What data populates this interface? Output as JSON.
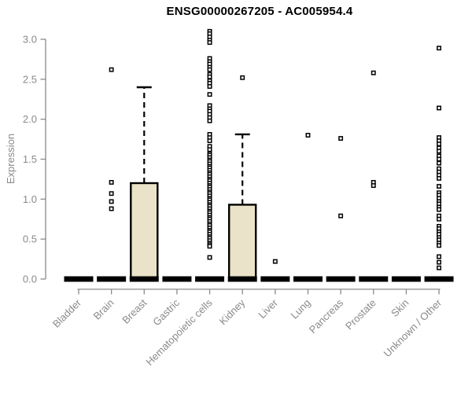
{
  "title": "ENSG00000267205 - AC005954.4",
  "colors": {
    "box_fill": "#EAE3C9",
    "box_border": "#000000",
    "bar_flat": "#000000",
    "axis": "#8a8a8a",
    "tick_label": "#8a8a8a",
    "title_color": "#000000",
    "background": "#ffffff",
    "outlier_fill": "#ffffff",
    "outlier_border": "#000000"
  },
  "chart_data": {
    "type": "boxplot",
    "title": "ENSG00000267205 - AC005954.4",
    "xlabel": "",
    "ylabel": "Expression",
    "ylim": [
      0,
      3.0
    ],
    "yticks": [
      0.0,
      0.5,
      1.0,
      1.5,
      2.0,
      2.5,
      3.0
    ],
    "ytick_labels": [
      "0.0",
      "0.5",
      "1.0",
      "1.5",
      "2.0",
      "2.5",
      "3.0"
    ],
    "grid": false,
    "legend": "none",
    "categories": [
      "Bladder",
      "Brain",
      "Breast",
      "Gastric",
      "Hematopoietic cells",
      "Kidney",
      "Liver",
      "Lung",
      "Pancreas",
      "Prostate",
      "Skin",
      "Unknown / Other"
    ],
    "series": [
      {
        "name": "Bladder",
        "min": 0,
        "q1": 0,
        "median": 0,
        "q3": 0,
        "whisker_low": 0,
        "whisker_high": 0,
        "outliers": []
      },
      {
        "name": "Brain",
        "min": 0,
        "q1": 0,
        "median": 0,
        "q3": 0,
        "whisker_low": 0,
        "whisker_high": 0,
        "outliers": [
          2.62,
          1.21,
          1.07,
          0.97,
          0.88
        ]
      },
      {
        "name": "Breast",
        "min": 0,
        "q1": 0,
        "median": 0,
        "q3": 1.2,
        "whisker_low": 0,
        "whisker_high": 2.4,
        "outliers": []
      },
      {
        "name": "Gastric",
        "min": 0,
        "q1": 0,
        "median": 0,
        "q3": 0,
        "whisker_low": 0,
        "whisker_high": 0,
        "outliers": []
      },
      {
        "name": "Hematopoietic cells",
        "min": 0,
        "q1": 0,
        "median": 0,
        "q3": 0,
        "whisker_low": 0,
        "whisker_high": 0,
        "outliers": [
          3.1,
          3.07,
          3.03,
          2.99,
          2.96,
          2.76,
          2.72,
          2.69,
          2.65,
          2.62,
          2.56,
          2.53,
          2.48,
          2.45,
          2.41,
          2.31,
          2.17,
          2.13,
          2.1,
          2.06,
          2.02,
          1.98,
          1.81,
          1.77,
          1.73,
          1.66,
          1.62,
          1.57,
          1.55,
          1.52,
          1.49,
          1.47,
          1.44,
          1.41,
          1.39,
          1.36,
          1.33,
          1.31,
          1.28,
          1.25,
          1.23,
          1.2,
          1.17,
          1.15,
          1.12,
          1.09,
          1.07,
          1.04,
          1.01,
          0.99,
          0.96,
          0.93,
          0.91,
          0.88,
          0.85,
          0.83,
          0.8,
          0.77,
          0.75,
          0.72,
          0.69,
          0.67,
          0.64,
          0.61,
          0.59,
          0.56,
          0.53,
          0.51,
          0.48,
          0.45,
          0.43,
          0.41,
          0.27
        ]
      },
      {
        "name": "Kidney",
        "min": 0,
        "q1": 0,
        "median": 0,
        "q3": 0.93,
        "whisker_low": 0,
        "whisker_high": 1.81,
        "outliers": [
          2.52
        ]
      },
      {
        "name": "Liver",
        "min": 0,
        "q1": 0,
        "median": 0,
        "q3": 0,
        "whisker_low": 0,
        "whisker_high": 0,
        "outliers": [
          0.22
        ]
      },
      {
        "name": "Lung",
        "min": 0,
        "q1": 0,
        "median": 0,
        "q3": 0,
        "whisker_low": 0,
        "whisker_high": 0,
        "outliers": [
          1.8
        ]
      },
      {
        "name": "Pancreas",
        "min": 0,
        "q1": 0,
        "median": 0,
        "q3": 0,
        "whisker_low": 0,
        "whisker_high": 0,
        "outliers": [
          1.76,
          0.79
        ]
      },
      {
        "name": "Prostate",
        "min": 0,
        "q1": 0,
        "median": 0,
        "q3": 0,
        "whisker_low": 0,
        "whisker_high": 0,
        "outliers": [
          2.58,
          1.21,
          1.17
        ]
      },
      {
        "name": "Skin",
        "min": 0,
        "q1": 0,
        "median": 0,
        "q3": 0,
        "whisker_low": 0,
        "whisker_high": 0,
        "outliers": []
      },
      {
        "name": "Unknown / Other",
        "min": 0,
        "q1": 0,
        "median": 0,
        "q3": 0,
        "whisker_low": 0,
        "whisker_high": 0,
        "outliers": [
          2.89,
          2.14,
          1.77,
          1.73,
          1.69,
          1.64,
          1.6,
          1.54,
          1.5,
          1.45,
          1.38,
          1.34,
          1.3,
          1.26,
          1.16,
          1.08,
          1.05,
          1.01,
          0.97,
          0.94,
          0.9,
          0.87,
          0.79,
          0.75,
          0.66,
          0.63,
          0.59,
          0.56,
          0.52,
          0.49,
          0.45,
          0.42,
          0.28,
          0.21,
          0.14
        ]
      }
    ]
  }
}
